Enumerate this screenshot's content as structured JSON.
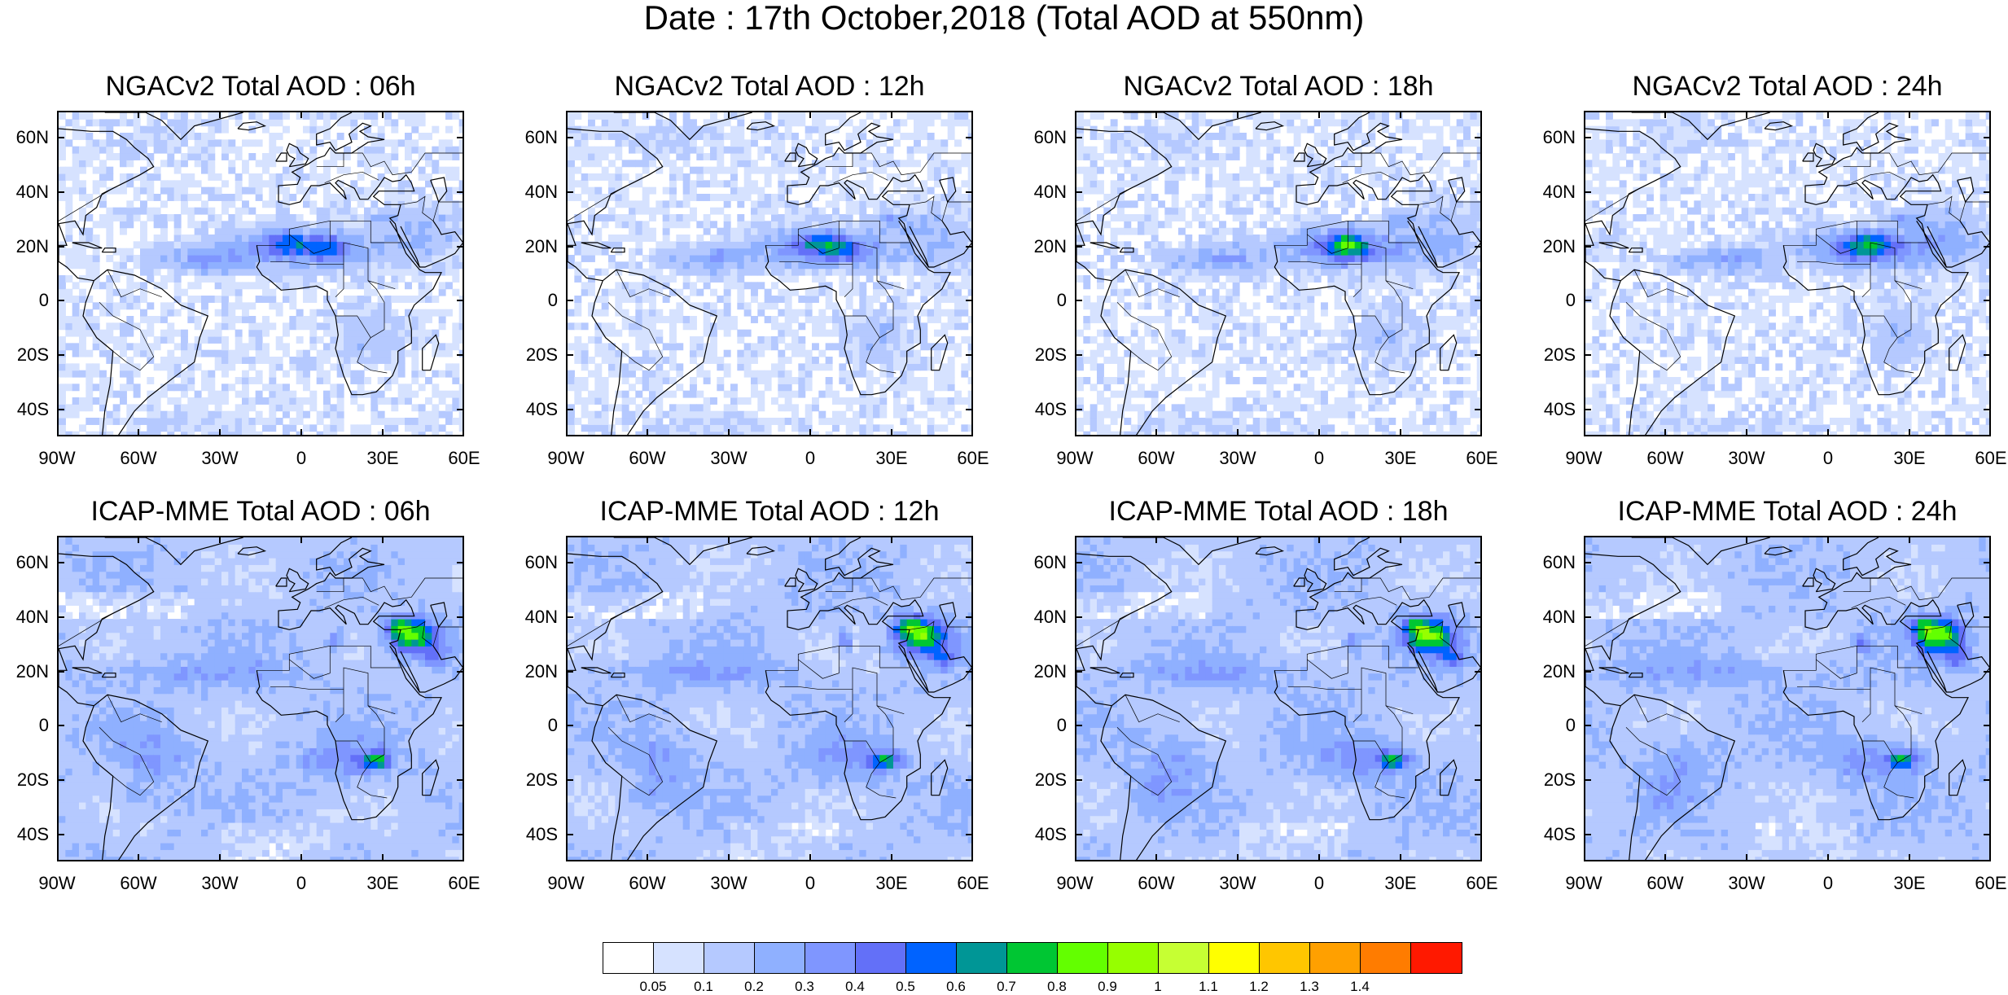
{
  "title": "Date : 17th October,2018 (Total AOD at 550nm)",
  "map_axes": {
    "lat_labels": [
      "60N",
      "40N",
      "20N",
      "0",
      "20S",
      "40S"
    ],
    "lon_labels": [
      "90W",
      "60W",
      "30W",
      "0",
      "30E",
      "60E"
    ]
  },
  "panels": [
    {
      "title": "NGACv2 Total AOD : 06h",
      "model": "NGACv2",
      "hour": 6
    },
    {
      "title": "NGACv2 Total AOD : 12h",
      "model": "NGACv2",
      "hour": 12
    },
    {
      "title": "NGACv2 Total AOD : 18h",
      "model": "NGACv2",
      "hour": 18
    },
    {
      "title": "NGACv2 Total AOD : 24h",
      "model": "NGACv2",
      "hour": 24
    },
    {
      "title": "ICAP-MME Total AOD : 06h",
      "model": "ICAP-MME",
      "hour": 6
    },
    {
      "title": "ICAP-MME Total AOD : 12h",
      "model": "ICAP-MME",
      "hour": 12
    },
    {
      "title": "ICAP-MME Total AOD : 18h",
      "model": "ICAP-MME",
      "hour": 18
    },
    {
      "title": "ICAP-MME Total AOD : 24h",
      "model": "ICAP-MME",
      "hour": 24
    }
  ],
  "colorbar": {
    "labels": [
      "0.05",
      "0.1",
      "0.2",
      "0.3",
      "0.4",
      "0.5",
      "0.6",
      "0.7",
      "0.8",
      "0.9",
      "1",
      "1.1",
      "1.2",
      "1.3",
      "1.4"
    ],
    "colors": [
      "#ffffff",
      "#d6e2ff",
      "#b5c9ff",
      "#8fb0ff",
      "#7f96ff",
      "#6370f8",
      "#0063ff",
      "#009696",
      "#00c633",
      "#63ff00",
      "#96ff00",
      "#c6ff33",
      "#ffff00",
      "#ffc600",
      "#ffa000",
      "#ff7c00",
      "#ff1900"
    ]
  },
  "colors": {
    "land_outline": "#000000",
    "background_aod": "#d6e2ff"
  }
}
